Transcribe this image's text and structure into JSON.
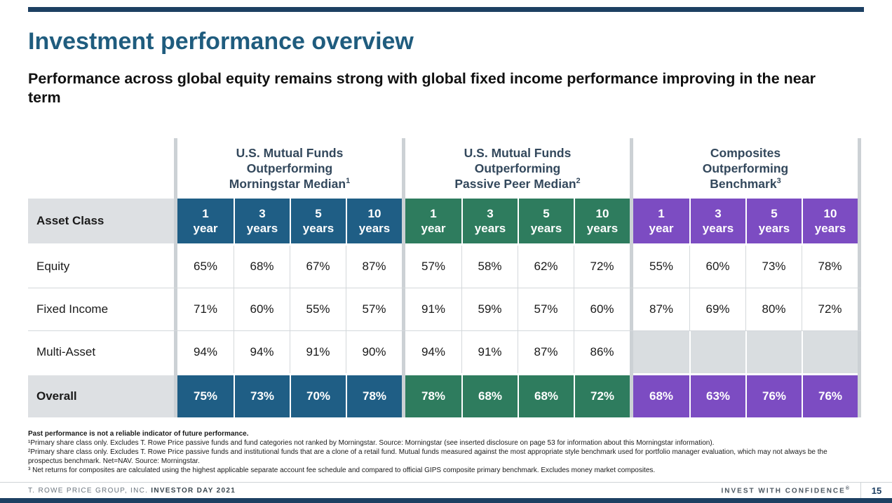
{
  "title": "Investment performance overview",
  "subtitle": "Performance across global equity remains strong with global fixed income performance improving in the near term",
  "colors": {
    "accent_blue": "#1F5E85",
    "accent_green": "#2E7C5E",
    "accent_purple": "#7C4CC2",
    "title_blue": "#1F5C7E",
    "group_title_text": "#33485C",
    "header_gray_bg": "#DDE0E3",
    "empty_cell_bg": "#D9DDE0",
    "gridline": "#D4D8DB",
    "separator_gray": "#CCD1D5",
    "navy_bar": "#1D4062",
    "footer_text": "#6A747D",
    "page_number_navy": "#1D3F62"
  },
  "table": {
    "row_header": "Asset Class",
    "groups": [
      {
        "id": "mutual-funds-morningstar",
        "lines": [
          "U.S. Mutual Funds",
          "Outperforming",
          "Morningstar Median"
        ],
        "sup": "1",
        "color": "blue"
      },
      {
        "id": "mutual-funds-passive-peer",
        "lines": [
          "U.S. Mutual Funds",
          "Outperforming",
          "Passive Peer Median"
        ],
        "sup": "2",
        "color": "green"
      },
      {
        "id": "composites-benchmark",
        "lines": [
          "Composites",
          "Outperforming",
          "Benchmark"
        ],
        "sup": "3",
        "color": "purple"
      }
    ],
    "periods": [
      {
        "num": "1",
        "unit": "year"
      },
      {
        "num": "3",
        "unit": "years"
      },
      {
        "num": "5",
        "unit": "years"
      },
      {
        "num": "10",
        "unit": "years"
      }
    ],
    "rows": [
      {
        "label": "Equity",
        "values": [
          [
            "65%",
            "68%",
            "67%",
            "87%"
          ],
          [
            "57%",
            "58%",
            "62%",
            "72%"
          ],
          [
            "55%",
            "60%",
            "73%",
            "78%"
          ]
        ]
      },
      {
        "label": "Fixed Income",
        "values": [
          [
            "71%",
            "60%",
            "55%",
            "57%"
          ],
          [
            "91%",
            "59%",
            "57%",
            "60%"
          ],
          [
            "87%",
            "69%",
            "80%",
            "72%"
          ]
        ]
      },
      {
        "label": "Multi-Asset",
        "values": [
          [
            "94%",
            "94%",
            "91%",
            "90%"
          ],
          [
            "94%",
            "91%",
            "87%",
            "86%"
          ],
          [
            "",
            "",
            "",
            ""
          ]
        ]
      }
    ],
    "overall": {
      "label": "Overall",
      "values": [
        [
          "75%",
          "73%",
          "70%",
          "78%"
        ],
        [
          "78%",
          "68%",
          "68%",
          "72%"
        ],
        [
          "68%",
          "63%",
          "76%",
          "76%"
        ]
      ]
    }
  },
  "chart_data": {
    "type": "table",
    "title": "Investment performance overview",
    "unit": "%",
    "row_header": "Asset Class",
    "column_groups": [
      "U.S. Mutual Funds Outperforming Morningstar Median",
      "U.S. Mutual Funds Outperforming Passive Peer Median",
      "Composites Outperforming Benchmark"
    ],
    "columns_per_group": [
      "1 year",
      "3 years",
      "5 years",
      "10 years"
    ],
    "rows": [
      {
        "label": "Equity",
        "morningstar_median": [
          65,
          68,
          67,
          87
        ],
        "passive_peer_median": [
          57,
          58,
          62,
          72
        ],
        "composites_benchmark": [
          55,
          60,
          73,
          78
        ]
      },
      {
        "label": "Fixed Income",
        "morningstar_median": [
          71,
          60,
          55,
          57
        ],
        "passive_peer_median": [
          91,
          59,
          57,
          60
        ],
        "composites_benchmark": [
          87,
          69,
          80,
          72
        ]
      },
      {
        "label": "Multi-Asset",
        "morningstar_median": [
          94,
          94,
          91,
          90
        ],
        "passive_peer_median": [
          94,
          91,
          87,
          86
        ],
        "composites_benchmark": [
          null,
          null,
          null,
          null
        ]
      },
      {
        "label": "Overall",
        "morningstar_median": [
          75,
          73,
          70,
          78
        ],
        "passive_peer_median": [
          78,
          68,
          68,
          72
        ],
        "composites_benchmark": [
          68,
          63,
          76,
          76
        ]
      }
    ]
  },
  "footnotes": [
    {
      "text": "Past performance is not a reliable indicator of future performance."
    },
    {
      "text": "¹Primary share class only. Excludes T. Rowe Price passive funds and fund categories not ranked by Morningstar. Source: Morningstar (see inserted disclosure on page 53 for information about this Morningstar information)."
    },
    {
      "text": "²Primary share class only. Excludes T. Rowe Price passive funds and institutional funds that are a clone of a retail fund. Mutual funds measured against the most appropriate style benchmark used for portfolio manager evaluation, which may not always be the prospectus benchmark. Net=NAV. Source: Morningstar."
    },
    {
      "text": "³ Net returns for composites are calculated using the highest applicable separate account fee schedule and compared to official GIPS composite primary benchmark. Excludes money market composites."
    }
  ],
  "footer": {
    "brand": "T. ROWE PRICE GROUP, INC.",
    "event": "INVESTOR DAY 2021",
    "tagline": "INVEST WITH CONFIDENCE",
    "registered": "®",
    "page_number": "15"
  }
}
